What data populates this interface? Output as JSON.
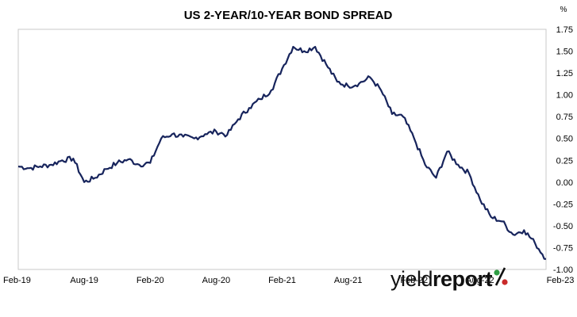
{
  "chart_data": {
    "type": "line",
    "title": "US 2-YEAR/10-YEAR BOND SPREAD",
    "ylabel": "%",
    "xlabel": "",
    "ylim": [
      -1.0,
      1.75
    ],
    "yticks": [
      1.75,
      1.5,
      1.25,
      1.0,
      0.75,
      0.5,
      0.25,
      0.0,
      -0.25,
      -0.5,
      -0.75,
      -1.0
    ],
    "ytick_labels": [
      "1.75",
      "1.50",
      "1.25",
      "1.00",
      "0.75",
      "0.50",
      "0.25",
      "0.00",
      "-0.25",
      "-0.50",
      "-0.75",
      "-1.00"
    ],
    "y_axis_position": "right",
    "x_ticks": [
      "2019-02",
      "2019-08",
      "2020-02",
      "2020-08",
      "2021-02",
      "2021-08",
      "2022-02",
      "2022-08",
      "2023-02"
    ],
    "x_tick_labels": [
      "Feb-19",
      "Aug-19",
      "Feb-20",
      "Aug-20",
      "Feb-21",
      "Aug-21",
      "Feb-22",
      "Aug-22",
      "Feb-23"
    ],
    "grid": false,
    "series_color": "#17245c",
    "series": [
      {
        "x": [
          "2019-02",
          "2019-03",
          "2019-04",
          "2019-05",
          "2019-06",
          "2019-07",
          "2019-08",
          "2019-09",
          "2019-10",
          "2019-11",
          "2019-12",
          "2020-01",
          "2020-02",
          "2020-03",
          "2020-04",
          "2020-05",
          "2020-06",
          "2020-07",
          "2020-08",
          "2020-09",
          "2020-10",
          "2020-11",
          "2020-12",
          "2021-01",
          "2021-02",
          "2021-03",
          "2021-04",
          "2021-05",
          "2021-06",
          "2021-07",
          "2021-08",
          "2021-09",
          "2021-10",
          "2021-11",
          "2021-12",
          "2022-01",
          "2022-02",
          "2022-03",
          "2022-04",
          "2022-05",
          "2022-06",
          "2022-07",
          "2022-08",
          "2022-09",
          "2022-10",
          "2022-11",
          "2022-12",
          "2023-01",
          "2023-02"
        ],
        "values": [
          0.18,
          0.16,
          0.18,
          0.2,
          0.25,
          0.27,
          0.0,
          0.05,
          0.15,
          0.22,
          0.26,
          0.2,
          0.22,
          0.5,
          0.55,
          0.52,
          0.5,
          0.55,
          0.58,
          0.54,
          0.72,
          0.85,
          0.95,
          1.05,
          1.3,
          1.55,
          1.5,
          1.55,
          1.35,
          1.15,
          1.1,
          1.13,
          1.2,
          1.05,
          0.78,
          0.75,
          0.5,
          0.2,
          0.05,
          0.35,
          0.2,
          0.1,
          -0.2,
          -0.4,
          -0.45,
          -0.6,
          -0.55,
          -0.7,
          -0.88
        ]
      }
    ]
  },
  "logo": {
    "text_regular": "yield",
    "text_bold": "report",
    "percent_symbol": "%",
    "color_text": "#111111",
    "color_green": "#2f9e44",
    "color_red": "#c92a2a"
  }
}
